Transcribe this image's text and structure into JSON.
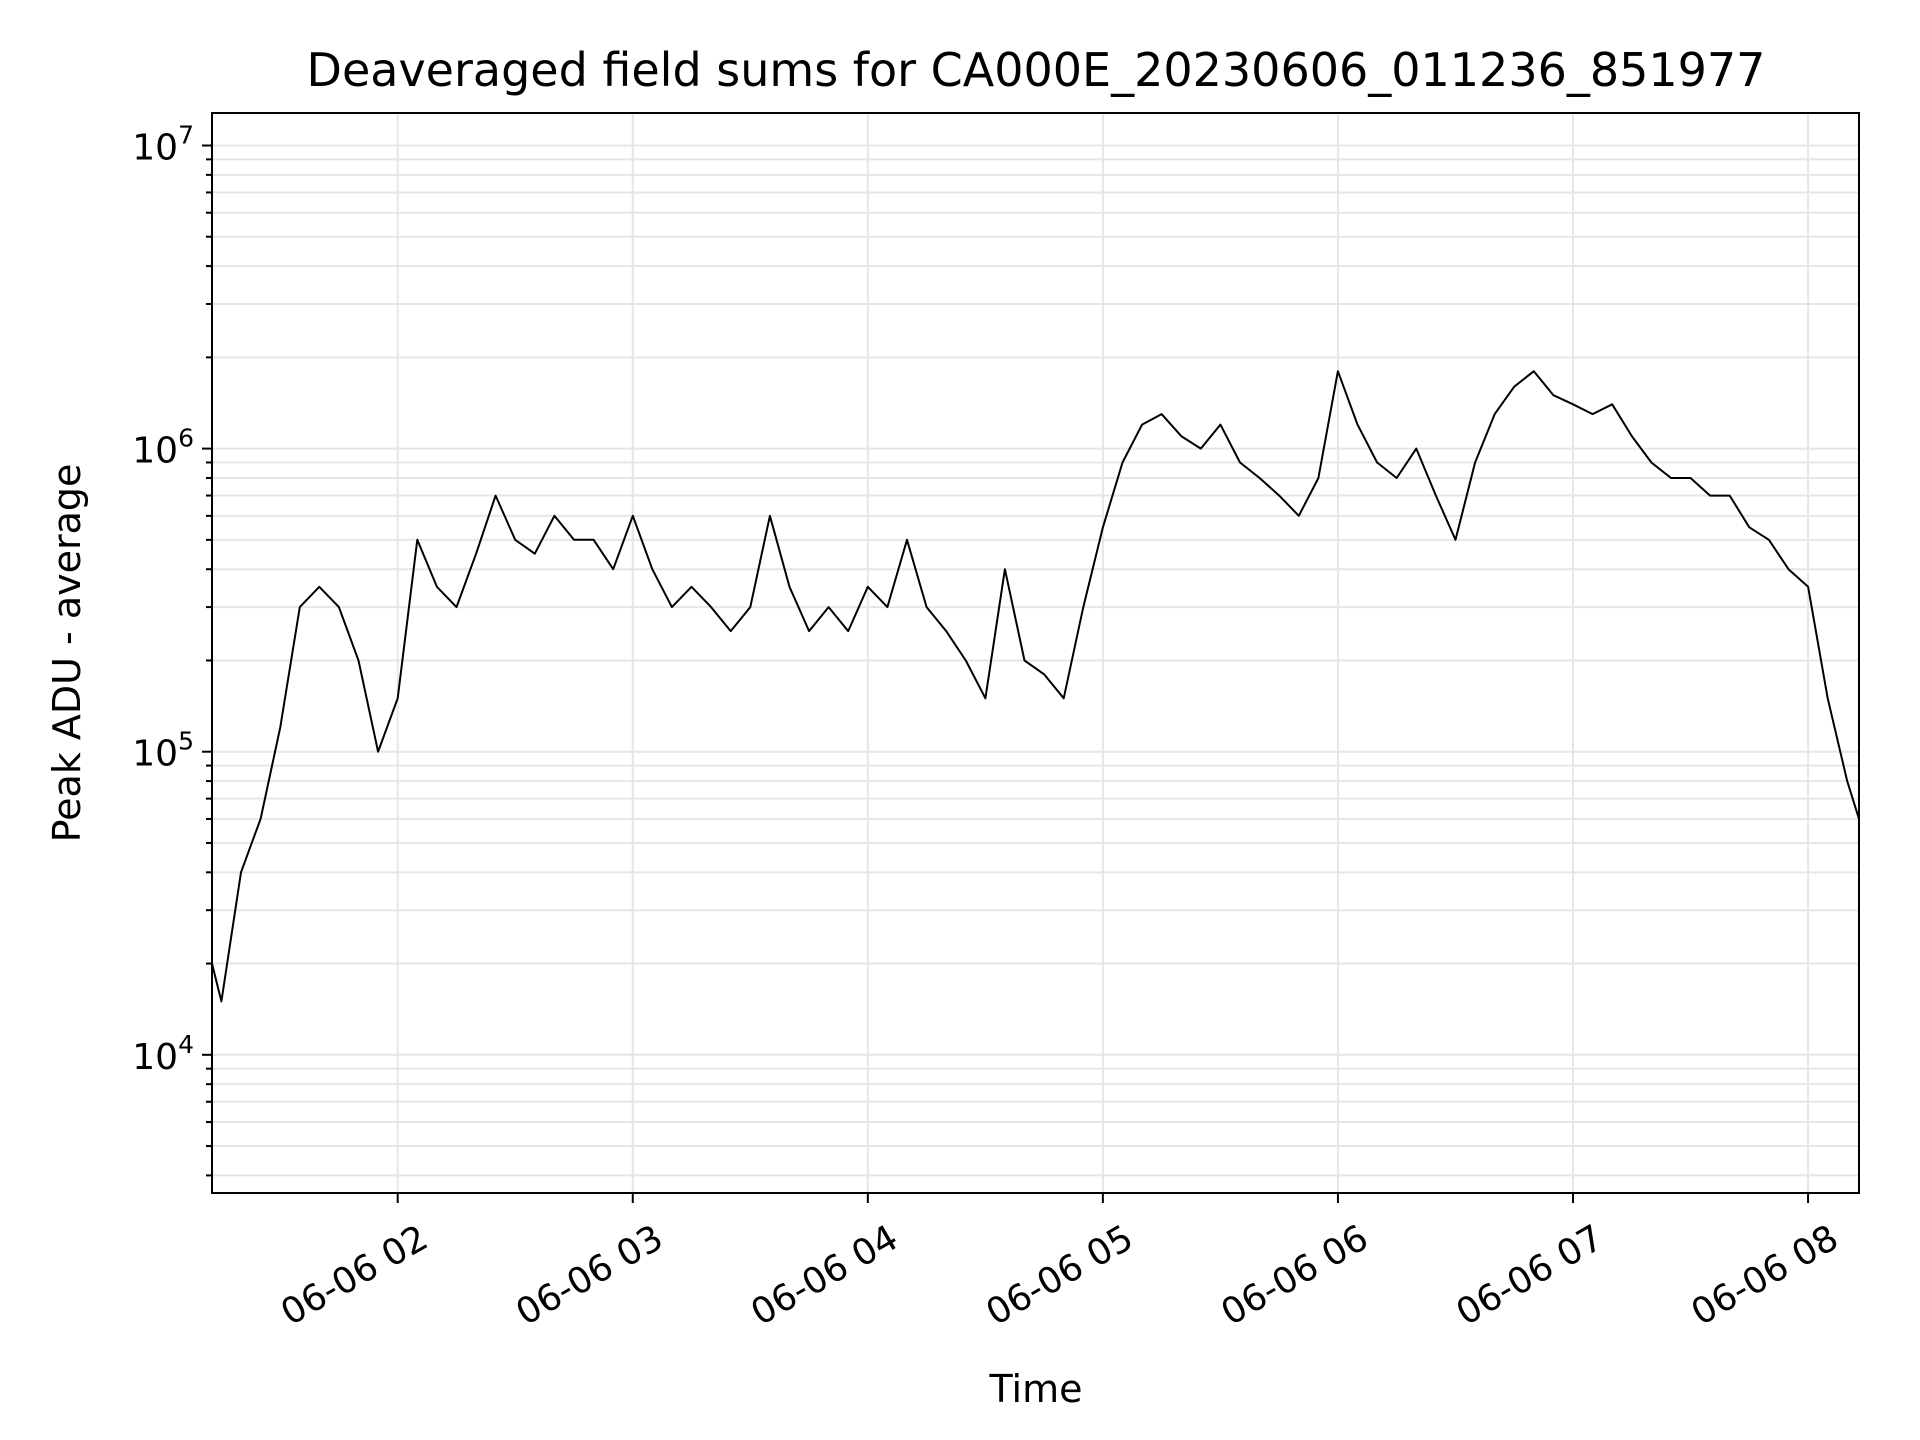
{
  "chart_data": {
    "type": "line",
    "title": "Deaveraged field sums for CA000E_20230606_011236_851977",
    "xlabel": "Time",
    "ylabel": "Peak ADU - average",
    "y_scale": "log",
    "ylim": [
      3500,
      12800000
    ],
    "xlim": [
      "2023-06-06 01:12:36",
      "2023-06-06 08:13:00"
    ],
    "grid": true,
    "line_color": "#000000",
    "x_ticks": [
      {
        "time": "2023-06-06 02:00",
        "label": "06-06 02"
      },
      {
        "time": "2023-06-06 03:00",
        "label": "06-06 03"
      },
      {
        "time": "2023-06-06 04:00",
        "label": "06-06 04"
      },
      {
        "time": "2023-06-06 05:00",
        "label": "06-06 05"
      },
      {
        "time": "2023-06-06 06:00",
        "label": "06-06 06"
      },
      {
        "time": "2023-06-06 07:00",
        "label": "06-06 07"
      },
      {
        "time": "2023-06-06 08:00",
        "label": "06-06 08"
      }
    ],
    "y_ticks": [
      {
        "value": 10000,
        "base": "10",
        "exp": "4"
      },
      {
        "value": 100000,
        "base": "10",
        "exp": "5"
      },
      {
        "value": 1000000,
        "base": "10",
        "exp": "6"
      },
      {
        "value": 10000000,
        "base": "10",
        "exp": "7"
      }
    ],
    "series": [
      {
        "x": [
          "2023-06-06 01:12:36",
          "2023-06-06 01:15",
          "2023-06-06 01:20",
          "2023-06-06 01:25",
          "2023-06-06 01:30",
          "2023-06-06 01:35",
          "2023-06-06 01:40",
          "2023-06-06 01:45",
          "2023-06-06 01:50",
          "2023-06-06 01:55",
          "2023-06-06 02:00",
          "2023-06-06 02:05",
          "2023-06-06 02:10",
          "2023-06-06 02:15",
          "2023-06-06 02:20",
          "2023-06-06 02:25",
          "2023-06-06 02:30",
          "2023-06-06 02:35",
          "2023-06-06 02:40",
          "2023-06-06 02:45",
          "2023-06-06 02:50",
          "2023-06-06 02:55",
          "2023-06-06 03:00",
          "2023-06-06 03:05",
          "2023-06-06 03:10",
          "2023-06-06 03:15",
          "2023-06-06 03:20",
          "2023-06-06 03:25",
          "2023-06-06 03:30",
          "2023-06-06 03:35",
          "2023-06-06 03:40",
          "2023-06-06 03:45",
          "2023-06-06 03:50",
          "2023-06-06 03:55",
          "2023-06-06 04:00",
          "2023-06-06 04:05",
          "2023-06-06 04:10",
          "2023-06-06 04:15",
          "2023-06-06 04:20",
          "2023-06-06 04:25",
          "2023-06-06 04:30",
          "2023-06-06 04:35",
          "2023-06-06 04:40",
          "2023-06-06 04:45",
          "2023-06-06 04:50",
          "2023-06-06 04:55",
          "2023-06-06 05:00",
          "2023-06-06 05:05",
          "2023-06-06 05:10",
          "2023-06-06 05:15",
          "2023-06-06 05:20",
          "2023-06-06 05:25",
          "2023-06-06 05:30",
          "2023-06-06 05:35",
          "2023-06-06 05:40",
          "2023-06-06 05:45",
          "2023-06-06 05:50",
          "2023-06-06 05:55",
          "2023-06-06 06:00",
          "2023-06-06 06:05",
          "2023-06-06 06:10",
          "2023-06-06 06:15",
          "2023-06-06 06:20",
          "2023-06-06 06:25",
          "2023-06-06 06:30",
          "2023-06-06 06:35",
          "2023-06-06 06:40",
          "2023-06-06 06:45",
          "2023-06-06 06:50",
          "2023-06-06 06:55",
          "2023-06-06 07:00",
          "2023-06-06 07:05",
          "2023-06-06 07:10",
          "2023-06-06 07:15",
          "2023-06-06 07:20",
          "2023-06-06 07:25",
          "2023-06-06 07:30",
          "2023-06-06 07:35",
          "2023-06-06 07:40",
          "2023-06-06 07:45",
          "2023-06-06 07:50",
          "2023-06-06 07:55",
          "2023-06-06 08:00",
          "2023-06-06 08:05",
          "2023-06-06 08:10",
          "2023-06-06 08:13"
        ],
        "values": [
          20000,
          15000,
          40000,
          60000,
          120000,
          300000,
          350000,
          300000,
          200000,
          100000,
          150000,
          500000,
          350000,
          300000,
          450000,
          700000,
          500000,
          450000,
          600000,
          500000,
          500000,
          400000,
          600000,
          400000,
          300000,
          350000,
          300000,
          250000,
          300000,
          600000,
          350000,
          250000,
          300000,
          250000,
          350000,
          300000,
          500000,
          300000,
          250000,
          200000,
          150000,
          400000,
          200000,
          180000,
          150000,
          300000,
          550000,
          900000,
          1200000,
          1300000,
          1100000,
          1000000,
          1200000,
          900000,
          800000,
          700000,
          600000,
          800000,
          1800000,
          1200000,
          900000,
          800000,
          1000000,
          700000,
          500000,
          900000,
          1300000,
          1600000,
          1800000,
          1500000,
          1400000,
          1300000,
          1400000,
          1100000,
          900000,
          800000,
          800000,
          700000,
          700000,
          550000,
          500000,
          400000,
          350000,
          150000,
          80000,
          60000
        ]
      }
    ]
  }
}
